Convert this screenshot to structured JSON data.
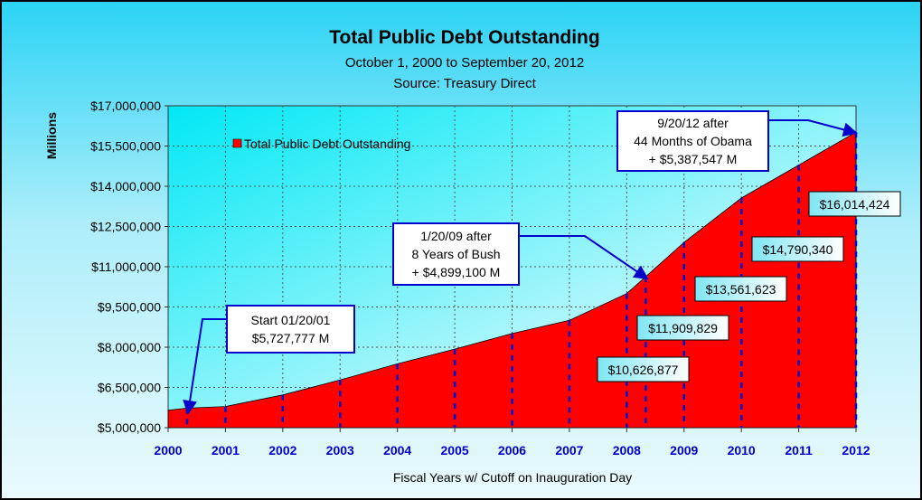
{
  "chart_data": {
    "type": "area",
    "title": "Total Public Debt Outstanding",
    "subtitle1": "October 1, 2000 to September 20, 2012",
    "subtitle2": "Source: Treasury Direct",
    "xlabel": "Fiscal Years w/ Cutoff on Inauguration Day",
    "ylabel": "Millions",
    "xlim": [
      2000,
      2012
    ],
    "ylim": [
      5000000,
      17000000
    ],
    "x_ticks": [
      "2000",
      "2001",
      "2002",
      "2003",
      "2004",
      "2005",
      "2006",
      "2007",
      "2008",
      "2009",
      "2010",
      "2011",
      "2012"
    ],
    "y_ticks": [
      "$5,000,000",
      "$6,500,000",
      "$8,000,000",
      "$9,500,000",
      "$11,000,000",
      "$12,500,000",
      "$14,000,000",
      "$15,500,000",
      "$17,000,000"
    ],
    "series": [
      {
        "name": "Total Public Debt Outstanding",
        "color": "#ff0000",
        "points": [
          [
            2000.0,
            5650000
          ],
          [
            2000.33,
            5727777
          ],
          [
            2001.0,
            5790000
          ],
          [
            2002.0,
            6220000
          ],
          [
            2003.0,
            6780000
          ],
          [
            2004.0,
            7380000
          ],
          [
            2005.0,
            7930000
          ],
          [
            2006.0,
            8510000
          ],
          [
            2007.0,
            9000000
          ],
          [
            2008.0,
            10000000
          ],
          [
            2008.33,
            10626877
          ],
          [
            2009.0,
            11909829
          ],
          [
            2010.0,
            13561623
          ],
          [
            2011.0,
            14790340
          ],
          [
            2012.0,
            16014424
          ]
        ]
      }
    ],
    "grid": true,
    "legend_position": "top-left",
    "value_labels": [
      {
        "text": "$10,626,877"
      },
      {
        "text": "$11,909,829"
      },
      {
        "text": "$13,561,623"
      },
      {
        "text": "$14,790,340"
      },
      {
        "text": "$16,014,424"
      }
    ],
    "callouts": [
      {
        "lines": [
          "Start 01/20/01",
          "$5,727,777 M"
        ]
      },
      {
        "lines": [
          "1/20/09 after",
          "8 Years of Bush",
          "+ $4,899,100 M"
        ]
      },
      {
        "lines": [
          "9/20/12 after",
          "44 Months of Obama",
          "+ $5,387,547 M"
        ]
      }
    ]
  }
}
